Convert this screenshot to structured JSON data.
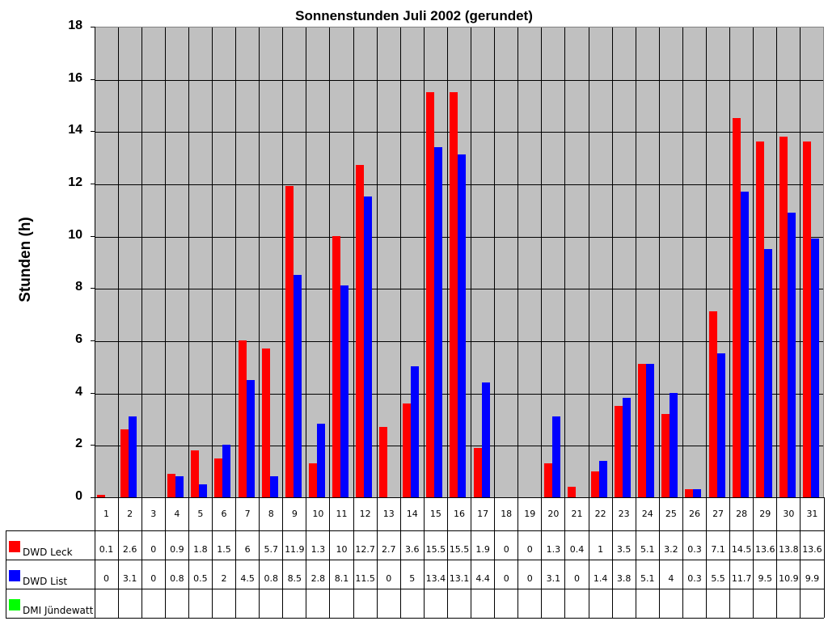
{
  "chart_data": {
    "type": "bar",
    "title": "Sonnenstunden Juli 2002 (gerundet)",
    "xlabel": "",
    "ylabel": "Stunden (h)",
    "ylim": [
      0,
      18
    ],
    "yticks": [
      0,
      2,
      4,
      6,
      8,
      10,
      12,
      14,
      16,
      18
    ],
    "grid": true,
    "legend_position": "data-table",
    "categories": [
      "1",
      "2",
      "3",
      "4",
      "5",
      "6",
      "7",
      "8",
      "9",
      "10",
      "11",
      "12",
      "13",
      "14",
      "15",
      "16",
      "17",
      "18",
      "19",
      "20",
      "21",
      "22",
      "23",
      "24",
      "25",
      "26",
      "27",
      "28",
      "29",
      "30",
      "31"
    ],
    "series": [
      {
        "name": "DWD Leck",
        "color": "#ff0000",
        "values": [
          0.1,
          2.6,
          0,
          0.9,
          1.8,
          1.5,
          6,
          5.7,
          11.9,
          1.3,
          10,
          12.7,
          2.7,
          3.6,
          15.5,
          15.5,
          1.9,
          0,
          0,
          1.3,
          0.4,
          1,
          3.5,
          5.1,
          3.2,
          0.3,
          7.1,
          14.5,
          13.6,
          13.8,
          13.6
        ]
      },
      {
        "name": "DWD List",
        "color": "#0000ff",
        "values": [
          0,
          3.1,
          0,
          0.8,
          0.5,
          2,
          4.5,
          0.8,
          8.5,
          2.8,
          8.1,
          11.5,
          0,
          5,
          13.4,
          13.1,
          4.4,
          0,
          0,
          3.1,
          0,
          1.4,
          3.8,
          5.1,
          4,
          0.3,
          5.5,
          11.7,
          9.5,
          10.9,
          9.9
        ]
      },
      {
        "name": "DMI Jündewatt",
        "color": "#00ff00",
        "values": [
          null,
          null,
          null,
          null,
          null,
          null,
          null,
          null,
          null,
          null,
          null,
          null,
          null,
          null,
          null,
          null,
          null,
          null,
          null,
          null,
          null,
          null,
          null,
          null,
          null,
          null,
          null,
          null,
          null,
          null,
          null
        ]
      }
    ],
    "plot_background": "#c0c0c0"
  }
}
